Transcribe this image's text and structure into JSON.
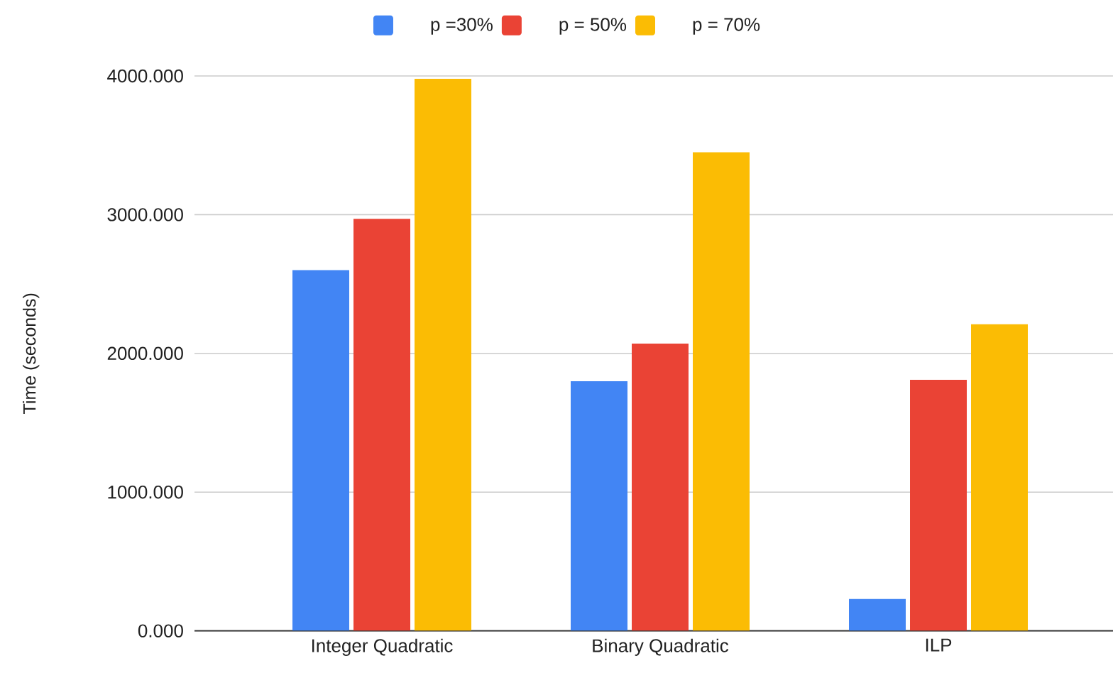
{
  "chart_data": {
    "type": "bar",
    "categories": [
      "Integer Quadratic",
      "Binary Quadratic",
      "ILP"
    ],
    "series": [
      {
        "name": "p =30%",
        "color": "#4285f4",
        "values": [
          2600,
          1800,
          230
        ]
      },
      {
        "name": "p = 50%",
        "color": "#ea4335",
        "values": [
          2970,
          2070,
          1810
        ]
      },
      {
        "name": "p = 70%",
        "color": "#fbbc04",
        "values": [
          3980,
          3450,
          2210
        ]
      }
    ],
    "ylabel": "Time (seconds)",
    "ylim": [
      0,
      4000
    ],
    "yticks": [
      {
        "value": 0,
        "label": "0.000"
      },
      {
        "value": 1000,
        "label": "1000.000"
      },
      {
        "value": 2000,
        "label": "2000.000"
      },
      {
        "value": 3000,
        "label": "3000.000"
      },
      {
        "value": 4000,
        "label": "4000.000"
      }
    ],
    "grid": "y",
    "legend": "top"
  }
}
